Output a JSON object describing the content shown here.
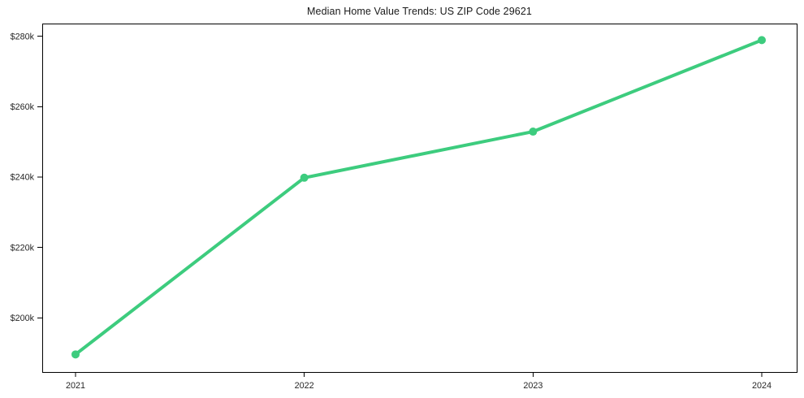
{
  "chart_data": {
    "type": "line",
    "title": "Median Home Value Trends: US ZIP Code 29621",
    "xlabel": "",
    "ylabel": "",
    "categories": [
      "2021",
      "2022",
      "2023",
      "2024"
    ],
    "series": [
      {
        "name": "Median Home Value",
        "values": [
          189600,
          239800,
          252900,
          278900
        ]
      }
    ],
    "y_ticks": [
      {
        "value": 200000,
        "label": "$200k"
      },
      {
        "value": 220000,
        "label": "$220k"
      },
      {
        "value": 240000,
        "label": "$240k"
      },
      {
        "value": 260000,
        "label": "$260k"
      },
      {
        "value": 280000,
        "label": "$280k"
      }
    ],
    "ylim": [
      184600,
      283600
    ],
    "grid": false,
    "legend_position": "none",
    "line_color": "#3dcc7e",
    "marker_color": "#3dcc7e",
    "axis_color": "#000000",
    "text_color": "#262626",
    "background_color": "#ffffff"
  }
}
